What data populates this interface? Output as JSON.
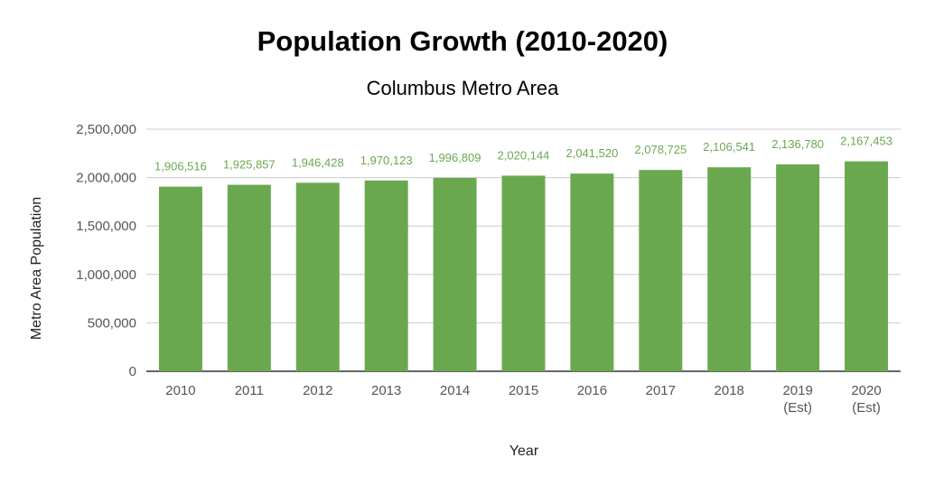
{
  "chart_data": {
    "type": "bar",
    "title": "Population Growth (2010-2020)",
    "subtitle": "Columbus Metro Area",
    "xlabel": "Year",
    "ylabel": "Metro Area Population",
    "categories": [
      [
        "2010"
      ],
      [
        "2011"
      ],
      [
        "2012"
      ],
      [
        "2013"
      ],
      [
        "2014"
      ],
      [
        "2015"
      ],
      [
        "2016"
      ],
      [
        "2017"
      ],
      [
        "2018"
      ],
      [
        "2019",
        "(Est)"
      ],
      [
        "2020",
        "(Est)"
      ]
    ],
    "values": [
      1906516,
      1925857,
      1946428,
      1970123,
      1996809,
      2020144,
      2041520,
      2078725,
      2106541,
      2136780,
      2167453
    ],
    "data_labels": [
      "1,906,516",
      "1,925,857",
      "1,946,428",
      "1,970,123",
      "1,996,809",
      "2,020,144",
      "2,041,520",
      "2,078,725",
      "2,106,541",
      "2,136,780",
      "2,167,453"
    ],
    "yticks": [
      0,
      500000,
      1000000,
      1500000,
      2000000,
      2500000
    ],
    "ytick_labels": [
      "0",
      "500,000",
      "1,000,000",
      "1,500,000",
      "2,000,000",
      "2,500,000"
    ],
    "ylim": [
      0,
      2500000
    ],
    "grid": true,
    "legend": "none",
    "bar_color": "#6aa84f",
    "grid_color": "#cccccc",
    "axis_color": "#333333"
  }
}
